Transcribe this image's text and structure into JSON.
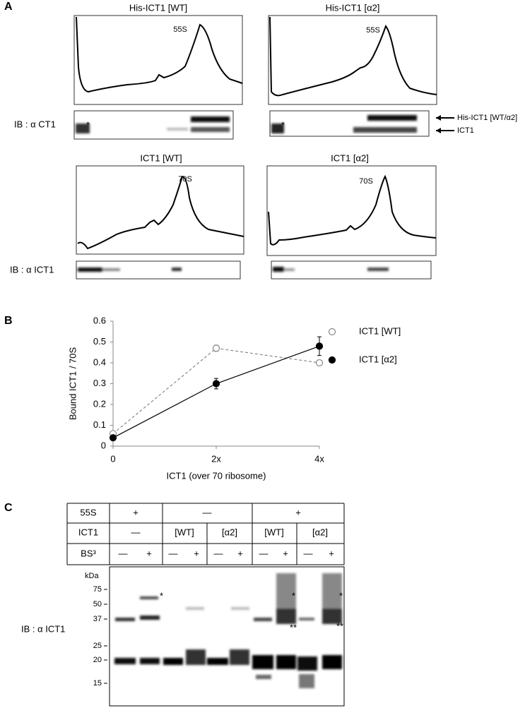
{
  "panel_a": {
    "label": "A",
    "profiles": [
      {
        "title": "His-ICT1 [WT]",
        "peak": "55S"
      },
      {
        "title": "His-ICT1 [α2]",
        "peak": "55S"
      },
      {
        "title": "ICT1 [WT]",
        "peak": "70S"
      },
      {
        "title": "ICT1 [α2]",
        "peak": "70S"
      }
    ],
    "blot_labels": [
      "IB :  α CT1",
      "IB :  α ICT1"
    ],
    "band_labels": [
      "His-ICT1 [WT/α2]",
      "ICT1"
    ],
    "asterisk": "*"
  },
  "panel_b": {
    "label": "B"
  },
  "chart_data": {
    "type": "line",
    "xlabel": "ICT1 (over 70 ribosome)",
    "ylabel": "Bound ICT1 / 70S",
    "x": [
      0,
      2,
      4
    ],
    "xlim": [
      0,
      4
    ],
    "xticks": [
      0,
      {
        "value": 2,
        "label": "2x"
      },
      {
        "value": 4,
        "label": "4x"
      }
    ],
    "ylim": [
      0,
      0.6
    ],
    "yticks": [
      0,
      0.1,
      0.2,
      0.3,
      0.4,
      0.5,
      0.6
    ],
    "legend": "right",
    "series": [
      {
        "name": "ICT1 [WT]",
        "color": "#888888",
        "dashed": true,
        "marker": "open",
        "values": [
          0.06,
          0.47,
          0.4
        ],
        "errors": [
          0.01,
          0.015,
          0.008
        ]
      },
      {
        "name": "ICT1 [α2]",
        "color": "#000000",
        "dashed": false,
        "marker": "filled",
        "values": [
          0.04,
          0.3,
          0.48
        ],
        "errors": [
          0.005,
          0.025,
          0.045
        ]
      }
    ]
  },
  "panel_c": {
    "label": "C",
    "table": {
      "rows": [
        [
          "55S",
          "+",
          "—",
          "+"
        ],
        [
          "ICT1",
          "—",
          "[WT]",
          "[α2]",
          "[WT]",
          "[α2]"
        ],
        [
          "BS³",
          "—",
          "+",
          "—",
          "+",
          "—",
          "+",
          "—",
          "+",
          "—",
          "+"
        ]
      ]
    },
    "kda": "kDa",
    "markers": [
      "75",
      "50",
      "37",
      "25",
      "20",
      "15"
    ],
    "blot_label": "IB : α ICT1",
    "single": "*",
    "double": "**"
  }
}
